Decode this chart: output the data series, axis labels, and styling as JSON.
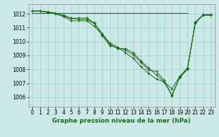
{
  "title": "Graphe pression niveau de la mer (hPa)",
  "bg_color": "#cce8e8",
  "grid_color": "#99cccc",
  "line_color": "#1a6b1a",
  "ylim": [
    1005.3,
    1012.7
  ],
  "xlim": [
    -0.5,
    23.5
  ],
  "yticks": [
    1006,
    1007,
    1008,
    1009,
    1010,
    1011,
    1012
  ],
  "xticks": [
    0,
    1,
    2,
    3,
    4,
    5,
    6,
    7,
    8,
    9,
    10,
    11,
    12,
    13,
    14,
    15,
    16,
    17,
    18,
    19,
    20,
    21,
    22,
    23
  ],
  "series1": [
    1012.2,
    1012.2,
    1012.1,
    1012.0,
    1011.8,
    1011.5,
    1011.5,
    1011.5,
    1011.1,
    1010.5,
    1009.8,
    1009.5,
    1009.5,
    1009.2,
    1008.6,
    1008.1,
    1007.6,
    1007.1,
    1006.1,
    1007.4,
    1008.0,
    1011.4,
    1011.9,
    1011.9
  ],
  "series2": [
    1012.2,
    1012.2,
    1012.1,
    1012.0,
    1011.9,
    1011.7,
    1011.6,
    1011.6,
    1011.3,
    1010.6,
    1009.9,
    1009.6,
    1009.2,
    1008.8,
    1008.2,
    1007.7,
    1007.3,
    1007.1,
    1006.6,
    1007.5,
    1008.1,
    1011.3,
    1011.9,
    1011.9
  ],
  "series3": [
    1012.2,
    1012.2,
    1012.15,
    1012.05,
    1011.85,
    1011.65,
    1011.7,
    1011.7,
    1011.35,
    1010.45,
    1009.7,
    1009.55,
    1009.4,
    1009.05,
    1008.5,
    1007.95,
    1007.85,
    1007.2,
    1006.15,
    1007.45,
    1008.05,
    1011.35,
    1011.95,
    1011.95
  ],
  "flat_line_x": [
    0,
    20
  ],
  "flat_line_y": [
    1012.05,
    1012.05
  ],
  "ylabel_fontsize": 5.5,
  "xlabel_fontsize": 5.5,
  "title_fontsize": 6.5
}
